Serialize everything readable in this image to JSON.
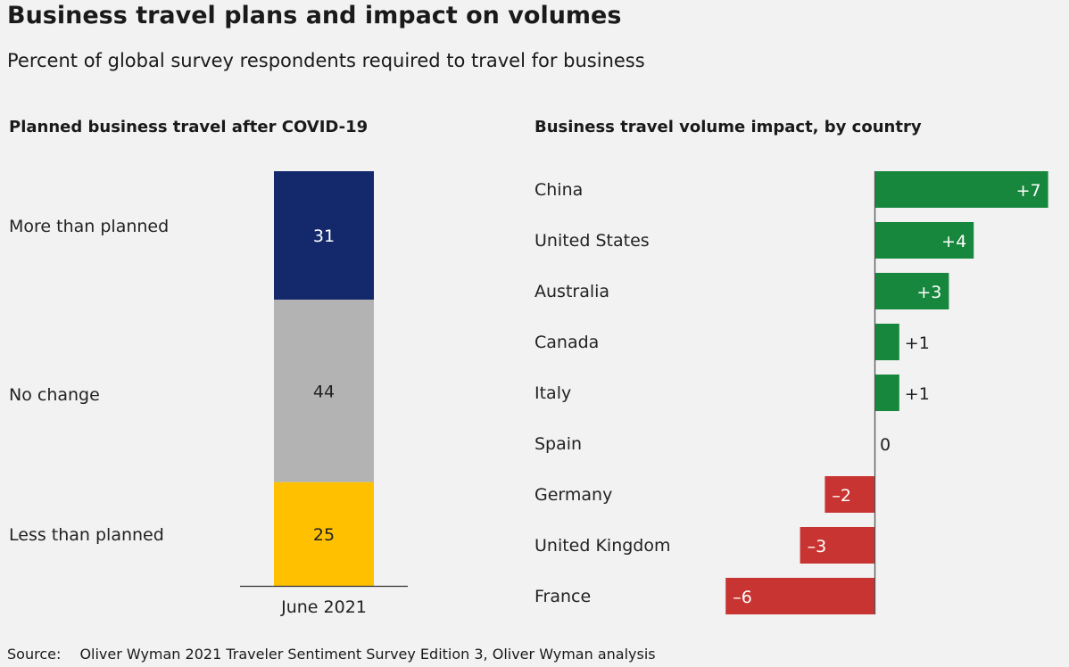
{
  "title": "Business travel plans and impact on volumes",
  "subtitle": "Percent of global survey respondents required to travel for business",
  "source_label": "Source:",
  "source_text": "Oliver Wyman 2021 Traveler Sentiment Survey Edition 3, Oliver Wyman analysis",
  "chart_data": [
    {
      "type": "bar",
      "stacked": true,
      "title": "Planned business travel after COVID-19",
      "categories": [
        "June 2021"
      ],
      "series": [
        {
          "name": "More than planned",
          "values": [
            31
          ],
          "label": "31",
          "color": "#14286c"
        },
        {
          "name": "No change",
          "values": [
            44
          ],
          "label": "44",
          "color": "#b3b3b3"
        },
        {
          "name": "Less than planned",
          "values": [
            25
          ],
          "label": "25",
          "color": "#ffc000"
        }
      ],
      "ylim": [
        0,
        100
      ]
    },
    {
      "type": "bar",
      "orientation": "horizontal",
      "title": "Business travel volume impact, by country",
      "categories": [
        "China",
        "United States",
        "Australia",
        "Canada",
        "Italy",
        "Spain",
        "Germany",
        "United Kingdom",
        "France"
      ],
      "values": [
        7,
        4,
        3,
        1,
        1,
        0,
        -2,
        -3,
        -6
      ],
      "labels": [
        "+7",
        "+4",
        "+3",
        "+1",
        "+1",
        "0",
        "–2",
        "–3",
        "–6"
      ],
      "positive_color": "#17873d",
      "negative_color": "#c83431"
    }
  ]
}
